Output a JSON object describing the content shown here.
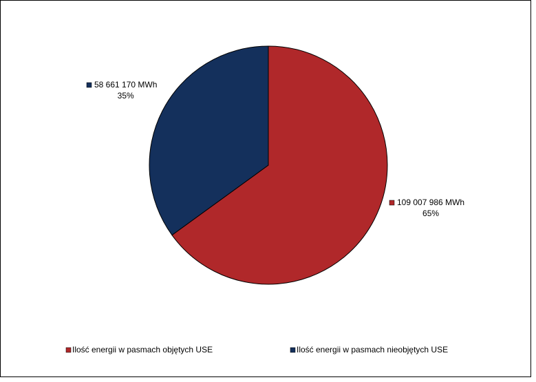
{
  "chart_data": {
    "type": "pie",
    "categories": [
      "Ilość energii w pasmach objętych USE",
      "Ilość energii w pasmach nieobjętych USE"
    ],
    "values": [
      109007986,
      58661170
    ],
    "value_labels": [
      "109 007 986 MWh",
      "58 661 170 MWh"
    ],
    "percent_labels": [
      {
        "value": 65,
        "label": "65%"
      },
      {
        "value": 35,
        "label": "35%"
      }
    ],
    "colors": [
      "#b0282a",
      "#14305c"
    ],
    "legend": "bottom"
  }
}
